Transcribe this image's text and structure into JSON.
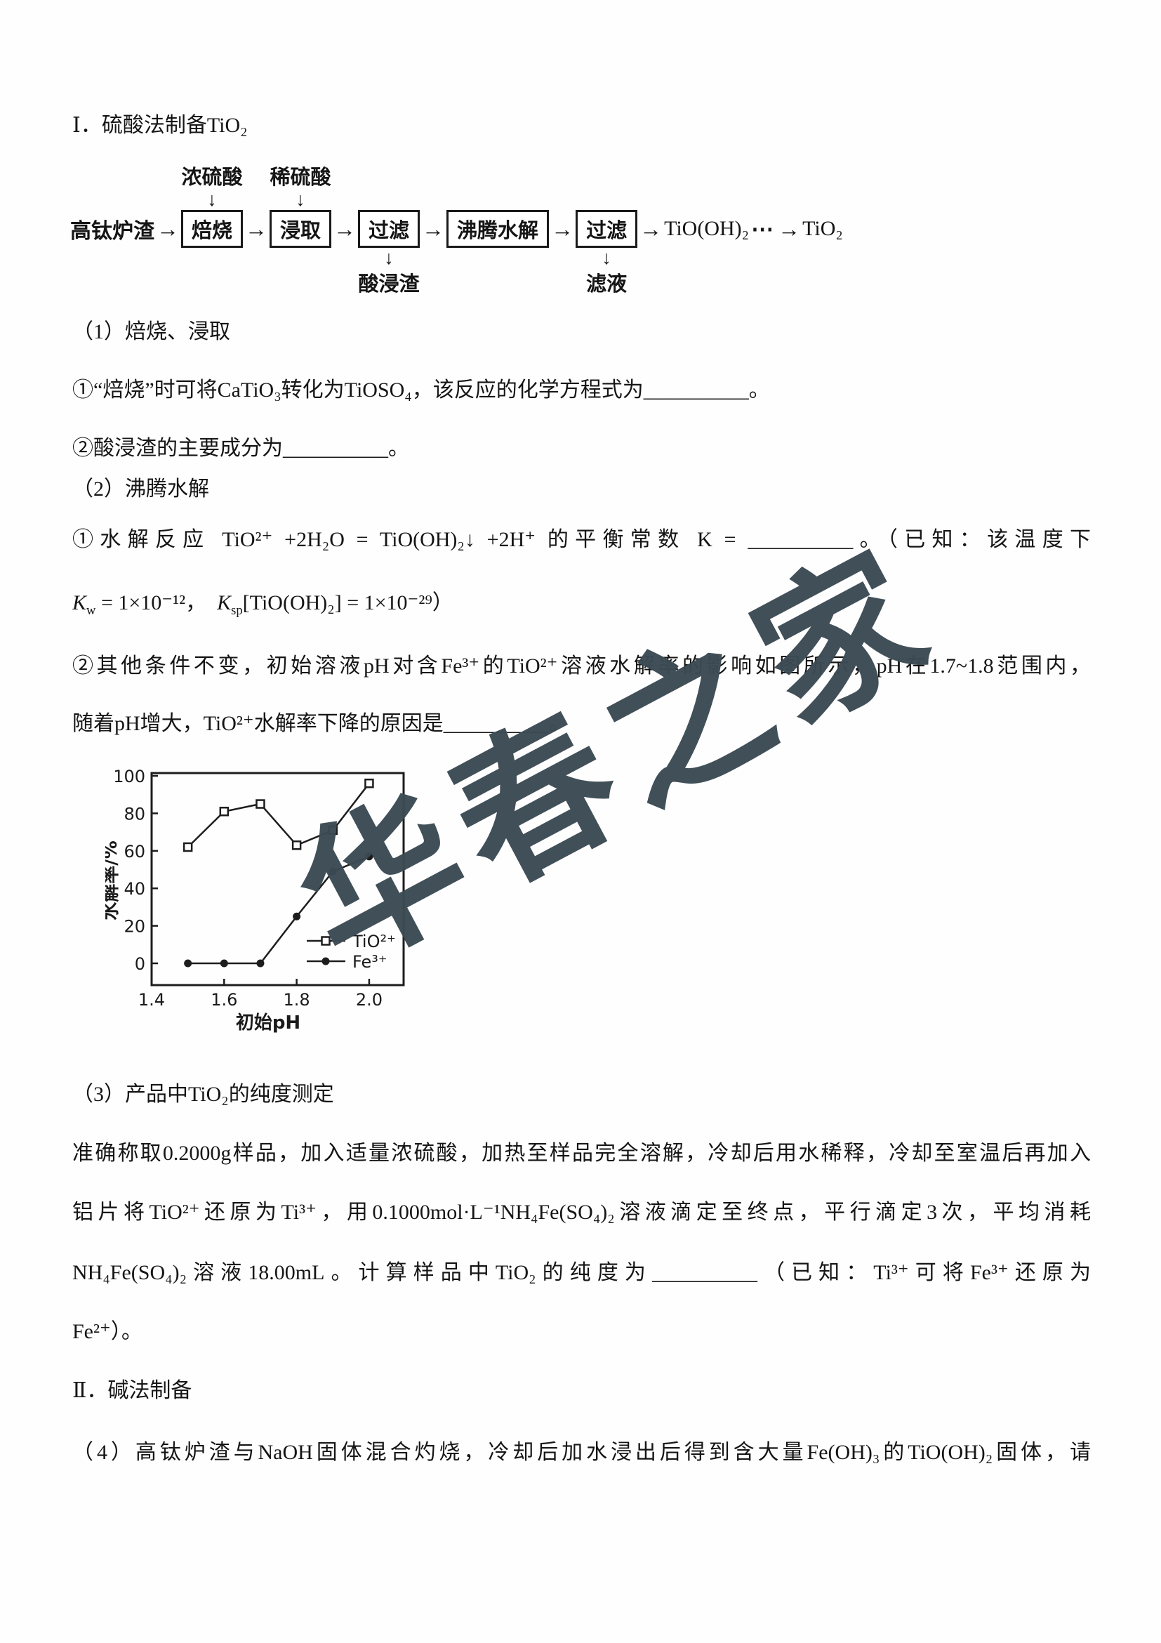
{
  "page": {
    "section1_title": "Ⅰ．硫酸法制备TiO₂",
    "section2_title": "Ⅱ．碱法制备"
  },
  "watermark": "华春之家",
  "flowchart": {
    "input": "高钛炉渣",
    "reagent_roast": "浓硫酸",
    "reagent_leach": "稀硫酸",
    "steps": [
      "焙烧",
      "浸取",
      "过滤",
      "沸腾水解",
      "过滤"
    ],
    "byproduct_filter1": "酸浸渣",
    "byproduct_filter2": "滤液",
    "product_intermediate": "TiO(OH)₂",
    "dots": "⋯",
    "product_final": "TiO₂",
    "arrow": "→",
    "down_arrow": "↓"
  },
  "q1": {
    "heading": "（1）焙烧、浸取",
    "item1": "①“焙烧”时可将CaTiO₃转化为TiOSO₄，该反应的化学方程式为__________。",
    "item2": "②酸浸渣的主要成分为__________。"
  },
  "q2": {
    "heading": "（2）沸腾水解",
    "item1": "①水解反应 TiO²⁺ +2H₂O = TiO(OH)₂↓ +2H⁺ 的平衡常数 K = __________。（已知：该温度下",
    "known_segments": [
      {
        "t": "K",
        "i": true
      },
      {
        "t": "w",
        "sub": true
      },
      {
        "t": " = 1×10⁻¹²，　"
      },
      {
        "t": "K",
        "i": true
      },
      {
        "t": "sp",
        "sub": true
      },
      {
        "t": "[TiO(OH)₂] = 1×10⁻²⁹）"
      }
    ],
    "item2_line1": "②其他条件不变，初始溶液pH对含Fe³⁺的TiO²⁺溶液水解率的影响如图所示，pH在1.7~1.8范围内，",
    "item2_line2": "随着pH增大，TiO²⁺水解率下降的原因是__________。"
  },
  "chart_data": {
    "type": "line",
    "title": "",
    "xlabel": "初始pH",
    "ylabel": "水解率/%",
    "x": [
      1.5,
      1.6,
      1.7,
      1.8,
      1.9,
      2.0
    ],
    "series": [
      {
        "name": "TiO²⁺",
        "marker": "square-open",
        "values": [
          62,
          81,
          85,
          63,
          71,
          96
        ]
      },
      {
        "name": "Fe³⁺",
        "marker": "circle-filled",
        "values": [
          0,
          0,
          0,
          25,
          49,
          57
        ]
      }
    ],
    "xticks": [
      1.4,
      1.6,
      1.8,
      2.0
    ],
    "yticks": [
      0,
      20,
      40,
      60,
      80,
      100
    ],
    "xlim": [
      1.4,
      2.095
    ],
    "ylim": [
      0,
      100
    ],
    "grid": false,
    "legend_position": "inside-bottom-right"
  },
  "q3": {
    "heading": "（3）产品中TiO₂的纯度测定",
    "line1": "准确称取0.2000g样品，加入适量浓硫酸，加热至样品完全溶解，冷却后用水稀释，冷却至室温后再加入",
    "line2": "铝片将TiO²⁺还原为Ti³⁺，用0.1000mol·L⁻¹NH₄Fe(SO₄)₂溶液滴定至终点，平行滴定3次，平均消耗",
    "line3": "NH₄Fe(SO₄)₂溶液18.00mL。计算样品中TiO₂的纯度为__________（已知：Ti³⁺可将Fe³⁺还原为",
    "line4": "Fe²⁺）。"
  },
  "q4": {
    "line1": "（4）高钛炉渣与NaOH固体混合灼烧，冷却后加水浸出后得到含大量Fe(OH)₃的TiO(OH)₂固体，请"
  }
}
